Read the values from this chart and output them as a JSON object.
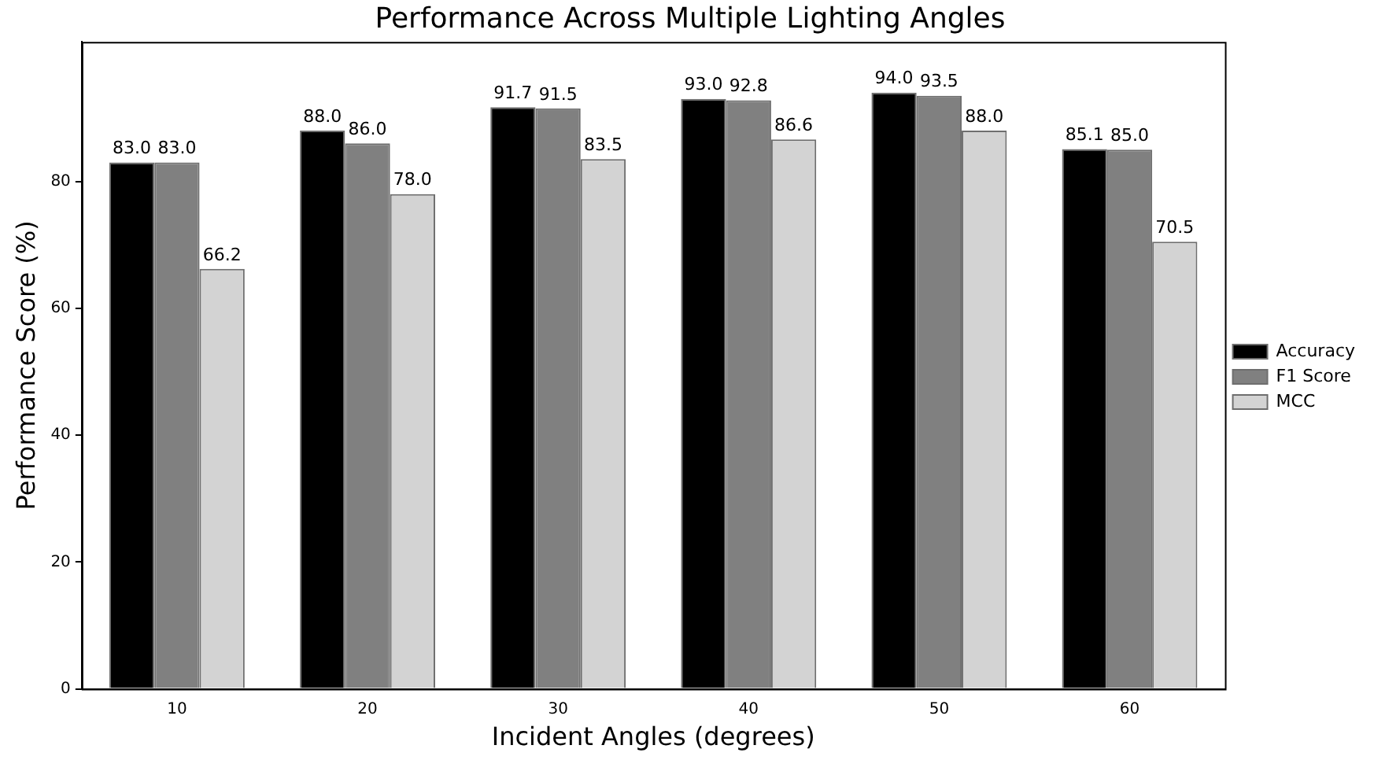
{
  "chart_data": {
    "type": "bar",
    "title": "Performance Across Multiple Lighting Angles",
    "xlabel": "Incident Angles (degrees)",
    "ylabel": "Performance Score (%)",
    "categories": [
      "10",
      "20",
      "30",
      "40",
      "50",
      "60"
    ],
    "series": [
      {
        "name": "Accuracy",
        "color": "#000000",
        "values": [
          83.0,
          88.0,
          91.7,
          93.0,
          94.0,
          85.1
        ],
        "value_labels": [
          "83.0",
          "88.0",
          "91.7",
          "93.0",
          "94.0",
          "85.1"
        ]
      },
      {
        "name": "F1 Score",
        "color": "#808080",
        "values": [
          83.0,
          86.0,
          91.5,
          92.8,
          93.5,
          85.0
        ],
        "value_labels": [
          "83.0",
          "86.0",
          "91.5",
          "92.8",
          "93.5",
          "85.0"
        ]
      },
      {
        "name": "MCC",
        "color": "#d3d3d3",
        "values": [
          66.2,
          78.0,
          83.5,
          86.6,
          88.0,
          70.5
        ],
        "value_labels": [
          "66.2",
          "78.0",
          "83.5",
          "86.6",
          "88.0",
          "70.5"
        ]
      }
    ],
    "ylim": [
      0,
      102
    ],
    "yticks": [
      0,
      20,
      40,
      60,
      80
    ],
    "grid": false,
    "legend": "right"
  }
}
